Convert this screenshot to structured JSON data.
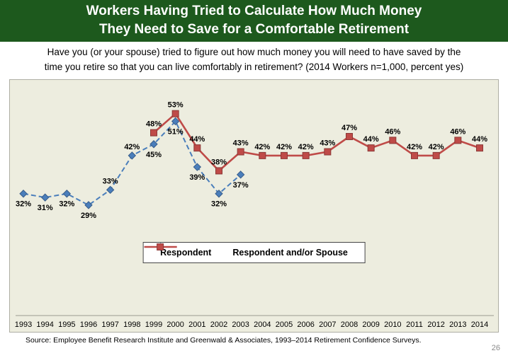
{
  "banner": {
    "line1": "Workers Having Tried to Calculate How Much Money",
    "line2": "They Need to Save for a Comfortable Retirement"
  },
  "question": {
    "line1": "Have you (or your spouse) tried to figure out how much money you will need to have saved by the",
    "line2": "time you retire so that you can live comfortably in retirement?  (2014 Workers n=1,000, percent yes)"
  },
  "chart_data": {
    "type": "line",
    "title": "Workers Having Tried to Calculate How Much Money They Need to Save for a Comfortable Retirement",
    "xlabel": "",
    "ylabel": "",
    "ylim": [
      0,
      60
    ],
    "grid": false,
    "legend_position": "inside-bottom-center",
    "categories": [
      "1993",
      "1994",
      "1995",
      "1996",
      "1997",
      "1998",
      "1999",
      "2000",
      "2001",
      "2002",
      "2003",
      "2004",
      "2005",
      "2006",
      "2007",
      "2008",
      "2009",
      "2010",
      "2011",
      "2012",
      "2013",
      "2014"
    ],
    "series": [
      {
        "name": "Respondent",
        "marker": "diamond",
        "dash": true,
        "color": "#4a7ebb",
        "edge": "#385d8a",
        "values": [
          32,
          31,
          32,
          29,
          33,
          42,
          45,
          51,
          39,
          32,
          37,
          null,
          null,
          null,
          null,
          null,
          null,
          null,
          null,
          null,
          null,
          null
        ],
        "label_positions": [
          "below",
          "below",
          "below",
          "below",
          "above",
          "above",
          "below",
          "below",
          "below",
          "below",
          "below",
          null,
          null,
          null,
          null,
          null,
          null,
          null,
          null,
          null,
          null,
          null
        ]
      },
      {
        "name": "Respondent and/or Spouse",
        "marker": "square",
        "dash": false,
        "color": "#bf4b48",
        "edge": "#8c3836",
        "values": [
          null,
          null,
          null,
          null,
          null,
          null,
          48,
          53,
          44,
          38,
          43,
          42,
          42,
          42,
          43,
          47,
          44,
          46,
          42,
          42,
          46,
          44
        ],
        "label_positions": [
          null,
          null,
          null,
          null,
          null,
          null,
          "above",
          "above",
          "above",
          "above",
          "above",
          "above",
          "above",
          "above",
          "above",
          "above",
          "above",
          "above",
          "above",
          "above",
          "above",
          "above"
        ]
      }
    ]
  },
  "source": "Source:  Employee Benefit Research Institute and Greenwald & Associates, 1993–2014 Retirement Confidence Surveys.",
  "page_number": "26",
  "colors": {
    "banner_green": "#1d591d",
    "chart_background": "#ededdf",
    "respondent_blue": "#4a7ebb",
    "spouse_red": "#bf4b48"
  }
}
